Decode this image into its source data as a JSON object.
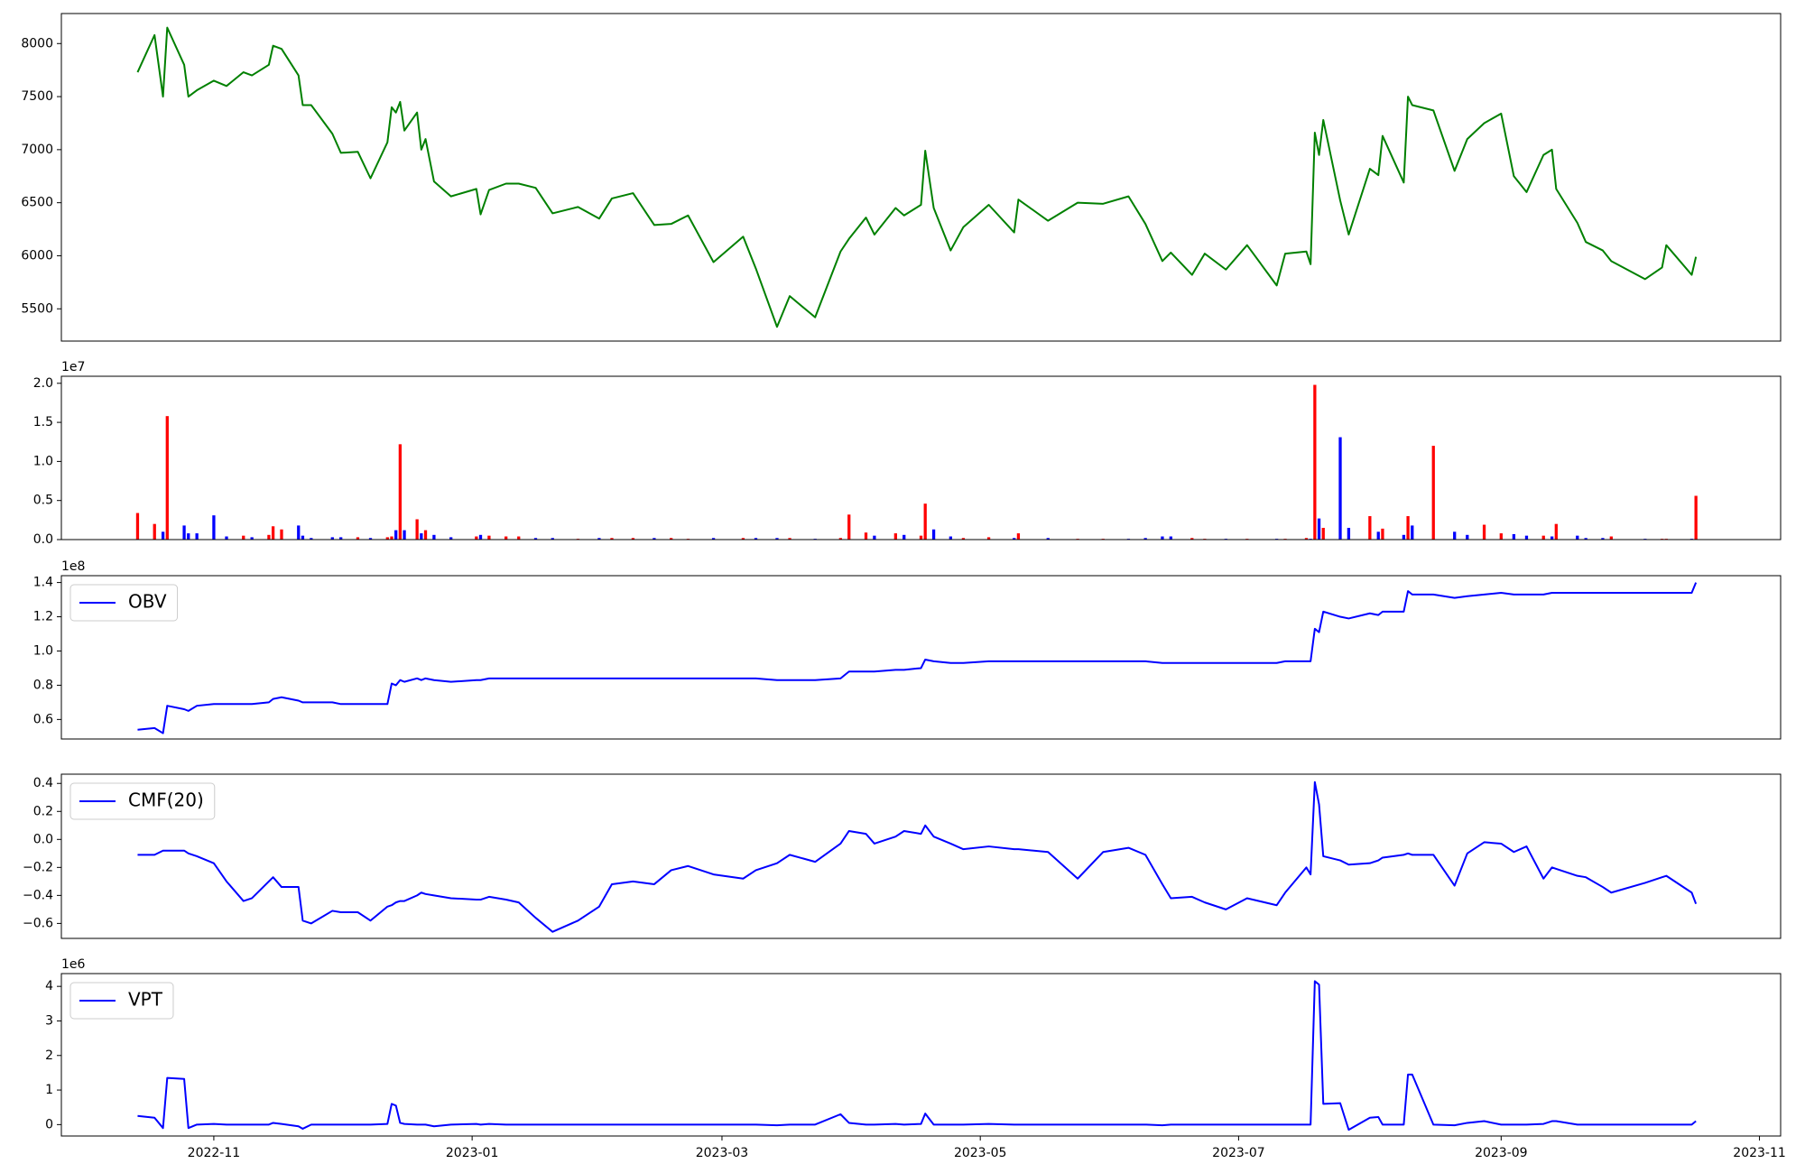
{
  "chart_data": [
    {
      "type": "line",
      "color": "green",
      "xlim": [
        "2022-09-26",
        "2023-11-06"
      ],
      "x": [
        "2022-10-14",
        "2022-10-18",
        "2022-10-20",
        "2022-10-21",
        "2022-10-25",
        "2022-10-26",
        "2022-10-28",
        "2022-11-01",
        "2022-11-04",
        "2022-11-08",
        "2022-11-10",
        "2022-11-14",
        "2022-11-15",
        "2022-11-17",
        "2022-11-21",
        "2022-11-22",
        "2022-11-24",
        "2022-11-29",
        "2022-12-01",
        "2022-12-05",
        "2022-12-08",
        "2022-12-12",
        "2022-12-13",
        "2022-12-14",
        "2022-12-15",
        "2022-12-16",
        "2022-12-19",
        "2022-12-20",
        "2022-12-21",
        "2022-12-23",
        "2022-12-27",
        "2023-01-02",
        "2023-01-03",
        "2023-01-05",
        "2023-01-09",
        "2023-01-12",
        "2023-01-16",
        "2023-01-20",
        "2023-01-26",
        "2023-01-31",
        "2023-02-03",
        "2023-02-08",
        "2023-02-13",
        "2023-02-17",
        "2023-02-21",
        "2023-02-27",
        "2023-03-06",
        "2023-03-09",
        "2023-03-14",
        "2023-03-17",
        "2023-03-23",
        "2023-03-29",
        "2023-03-31",
        "2023-04-04",
        "2023-04-06",
        "2023-04-11",
        "2023-04-13",
        "2023-04-17",
        "2023-04-18",
        "2023-04-20",
        "2023-04-24",
        "2023-04-27",
        "2023-05-03",
        "2023-05-09",
        "2023-05-10",
        "2023-05-17",
        "2023-05-24",
        "2023-05-30",
        "2023-06-05",
        "2023-06-09",
        "2023-06-13",
        "2023-06-15",
        "2023-06-20",
        "2023-06-23",
        "2023-06-28",
        "2023-07-03",
        "2023-07-10",
        "2023-07-12",
        "2023-07-17",
        "2023-07-18",
        "2023-07-19",
        "2023-07-20",
        "2023-07-21",
        "2023-07-25",
        "2023-07-27",
        "2023-08-01",
        "2023-08-03",
        "2023-08-04",
        "2023-08-09",
        "2023-08-10",
        "2023-08-11",
        "2023-08-16",
        "2023-08-21",
        "2023-08-24",
        "2023-08-28",
        "2023-09-01",
        "2023-09-04",
        "2023-09-07",
        "2023-09-11",
        "2023-09-13",
        "2023-09-14",
        "2023-09-19",
        "2023-09-21",
        "2023-09-25",
        "2023-09-27",
        "2023-10-05",
        "2023-10-09",
        "2023-10-10",
        "2023-10-16",
        "2023-10-17"
      ],
      "values": [
        7730,
        8080,
        7500,
        8150,
        7800,
        7500,
        7560,
        7650,
        7600,
        7730,
        7700,
        7800,
        7980,
        7950,
        7700,
        7420,
        7420,
        7150,
        6970,
        6980,
        6730,
        7070,
        7400,
        7350,
        7450,
        7180,
        7350,
        7000,
        7100,
        6700,
        6560,
        6630,
        6390,
        6620,
        6680,
        6680,
        6640,
        6400,
        6460,
        6350,
        6540,
        6590,
        6290,
        6300,
        6380,
        5940,
        6180,
        5880,
        5330,
        5620,
        5420,
        6040,
        6160,
        6360,
        6200,
        6450,
        6380,
        6480,
        6990,
        6450,
        6050,
        6270,
        6480,
        6220,
        6530,
        6330,
        6500,
        6490,
        6560,
        6300,
        5950,
        6030,
        5820,
        6020,
        5870,
        6100,
        5720,
        6020,
        6040,
        5920,
        7160,
        6950,
        7280,
        6520,
        6200,
        6820,
        6760,
        7130,
        6690,
        7500,
        7420,
        7370,
        6800,
        7100,
        7250,
        7340,
        6750,
        6600,
        6950,
        7000,
        6630,
        6310,
        6130,
        6050,
        5950,
        5780,
        5890,
        6100,
        5820,
        5990
      ],
      "ylim": [
        5196,
        8283
      ],
      "yticks": [
        5500,
        6000,
        6500,
        7000,
        7500,
        8000
      ]
    },
    {
      "type": "bar",
      "sharex": true,
      "offset_label": "1e7",
      "values": [
        0.34,
        0.2,
        0.1,
        1.58,
        0.18,
        0.08,
        0.08,
        0.31,
        0.04,
        0.05,
        0.03,
        0.06,
        0.17,
        0.13,
        0.18,
        0.05,
        0.02,
        0.03,
        0.03,
        0.03,
        0.02,
        0.03,
        0.04,
        0.12,
        1.22,
        0.12,
        0.26,
        0.08,
        0.12,
        0.06,
        0.03,
        0.04,
        0.06,
        0.05,
        0.04,
        0.04,
        0.02,
        0.02,
        0.01,
        0.02,
        0.02,
        0.02,
        0.02,
        0.02,
        0.01,
        0.02,
        0.02,
        0.02,
        0.02,
        0.02,
        0.01,
        0.02,
        0.32,
        0.09,
        0.05,
        0.08,
        0.06,
        0.05,
        0.46,
        0.13,
        0.04,
        0.02,
        0.03,
        0.02,
        0.08,
        0.02,
        0.01,
        0.01,
        0.01,
        0.02,
        0.04,
        0.04,
        0.02,
        0.01,
        0.01,
        0.01,
        0.01,
        0.01,
        0.02,
        0.01,
        1.98,
        0.27,
        0.15,
        1.31,
        0.15,
        0.3,
        0.1,
        0.14,
        0.06,
        0.3,
        0.18,
        1.2,
        0.1,
        0.06,
        0.19,
        0.08,
        0.07,
        0.05,
        0.05,
        0.04,
        0.2,
        0.05,
        0.02,
        0.02,
        0.04,
        0.01,
        0.01,
        0.01,
        0.01,
        0.56
      ],
      "colors": [
        "red",
        "red",
        "blue",
        "red",
        "blue",
        "blue",
        "blue",
        "blue",
        "blue",
        "red",
        "blue",
        "red",
        "red",
        "red",
        "blue",
        "blue",
        "blue",
        "blue",
        "blue",
        "red",
        "blue",
        "red",
        "red",
        "blue",
        "red",
        "blue",
        "red",
        "blue",
        "red",
        "blue",
        "blue",
        "red",
        "blue",
        "red",
        "red",
        "red",
        "blue",
        "blue",
        "red",
        "blue",
        "red",
        "red",
        "blue",
        "red",
        "red",
        "blue",
        "red",
        "blue",
        "blue",
        "red",
        "blue",
        "red",
        "red",
        "red",
        "blue",
        "red",
        "blue",
        "red",
        "red",
        "blue",
        "blue",
        "red",
        "red",
        "blue",
        "red",
        "blue",
        "red",
        "red",
        "blue",
        "blue",
        "blue",
        "blue",
        "red",
        "red",
        "blue",
        "red",
        "blue",
        "red",
        "red",
        "blue",
        "red",
        "blue",
        "red",
        "blue",
        "blue",
        "red",
        "blue",
        "red",
        "blue",
        "red",
        "blue",
        "red",
        "blue",
        "blue",
        "red",
        "red",
        "blue",
        "blue",
        "red",
        "blue",
        "red",
        "blue",
        "blue",
        "blue",
        "red",
        "blue",
        "red",
        "red",
        "blue",
        "red"
      ],
      "ylim": [
        0,
        2.09
      ],
      "yticks": [
        {
          "value": 0,
          "label": "0.0"
        },
        0.5,
        {
          "value": 1,
          "label": "1.0"
        },
        1.5,
        {
          "value": 2,
          "label": "2.0"
        }
      ]
    },
    {
      "type": "line",
      "sharex": true,
      "offset_label": "1e8",
      "legend": "upper left",
      "series": [
        {
          "name": "OBV",
          "color": "blue",
          "values": [
            0.54,
            0.55,
            0.52,
            0.68,
            0.66,
            0.65,
            0.68,
            0.69,
            0.69,
            0.69,
            0.69,
            0.7,
            0.72,
            0.73,
            0.71,
            0.7,
            0.7,
            0.7,
            0.69,
            0.69,
            0.69,
            0.69,
            0.81,
            0.8,
            0.83,
            0.82,
            0.84,
            0.83,
            0.84,
            0.83,
            0.82,
            0.83,
            0.83,
            0.84,
            0.84,
            0.84,
            0.84,
            0.84,
            0.84,
            0.84,
            0.84,
            0.84,
            0.84,
            0.84,
            0.84,
            0.84,
            0.84,
            0.84,
            0.83,
            0.83,
            0.83,
            0.84,
            0.88,
            0.88,
            0.88,
            0.89,
            0.89,
            0.9,
            0.95,
            0.94,
            0.93,
            0.93,
            0.94,
            0.94,
            0.94,
            0.94,
            0.94,
            0.94,
            0.94,
            0.94,
            0.93,
            0.93,
            0.93,
            0.93,
            0.93,
            0.93,
            0.93,
            0.94,
            0.94,
            0.94,
            1.13,
            1.11,
            1.23,
            1.2,
            1.19,
            1.22,
            1.21,
            1.23,
            1.23,
            1.35,
            1.33,
            1.33,
            1.31,
            1.32,
            1.33,
            1.34,
            1.33,
            1.33,
            1.33,
            1.34,
            1.34,
            1.34,
            1.34,
            1.34,
            1.34,
            1.34,
            1.34,
            1.34,
            1.34,
            1.4
          ]
        }
      ],
      "ylim": [
        0.486,
        1.44
      ],
      "yticks": [
        0.6,
        0.8,
        {
          "value": 1,
          "label": "1.0"
        },
        1.2,
        1.4
      ]
    },
    {
      "type": "line",
      "sharex": true,
      "legend": "upper left",
      "series": [
        {
          "name": "CMF(20)",
          "color": "blue",
          "values": [
            -0.11,
            -0.11,
            -0.08,
            -0.08,
            -0.08,
            -0.1,
            -0.12,
            -0.17,
            -0.3,
            -0.44,
            -0.42,
            -0.3,
            -0.27,
            -0.34,
            -0.34,
            -0.58,
            -0.6,
            -0.51,
            -0.52,
            -0.52,
            -0.58,
            -0.48,
            -0.47,
            -0.45,
            -0.44,
            -0.44,
            -0.4,
            -0.38,
            -0.39,
            -0.4,
            -0.42,
            -0.43,
            -0.43,
            -0.41,
            -0.43,
            -0.45,
            -0.56,
            -0.66,
            -0.58,
            -0.48,
            -0.32,
            -0.3,
            -0.32,
            -0.22,
            -0.19,
            -0.25,
            -0.28,
            -0.22,
            -0.17,
            -0.11,
            -0.16,
            -0.03,
            0.06,
            0.04,
            -0.03,
            0.02,
            0.06,
            0.04,
            0.1,
            0.02,
            -0.03,
            -0.07,
            -0.05,
            -0.07,
            -0.07,
            -0.09,
            -0.28,
            -0.09,
            -0.06,
            -0.11,
            -0.32,
            -0.42,
            -0.41,
            -0.45,
            -0.5,
            -0.42,
            -0.47,
            -0.38,
            -0.2,
            -0.25,
            0.41,
            0.25,
            -0.12,
            -0.15,
            -0.18,
            -0.17,
            -0.15,
            -0.13,
            -0.11,
            -0.1,
            -0.11,
            -0.11,
            -0.33,
            -0.1,
            -0.02,
            -0.03,
            -0.09,
            -0.05,
            -0.28,
            -0.2,
            -0.21,
            -0.26,
            -0.27,
            -0.34,
            -0.38,
            -0.31,
            -0.27,
            -0.26,
            -0.38,
            -0.46
          ]
        }
      ],
      "ylim": [
        -0.707,
        0.466
      ],
      "yticks": [
        {
          "value": -0.6,
          "label": "−0.6"
        },
        {
          "value": -0.4,
          "label": "−0.4"
        },
        {
          "value": -0.2,
          "label": "−0.2"
        },
        {
          "value": 0,
          "label": "0.0"
        },
        0.2,
        0.4
      ]
    },
    {
      "type": "line",
      "sharex": true,
      "offset_label": "1e6",
      "legend": "upper left",
      "series": [
        {
          "name": "VPT",
          "color": "blue",
          "values": [
            0.25,
            0.2,
            -0.1,
            1.35,
            1.32,
            -0.1,
            0,
            0.02,
            0,
            0,
            0,
            0,
            0.05,
            0.02,
            -0.05,
            -0.12,
            0,
            0,
            0,
            0,
            0,
            0.02,
            0.6,
            0.55,
            0.05,
            0.02,
            0,
            0,
            0,
            -0.05,
            0,
            0.02,
            0,
            0.02,
            0,
            0,
            0,
            0,
            0,
            0,
            0,
            0,
            0,
            0,
            0,
            0,
            0,
            0,
            -0.02,
            0,
            0,
            0.3,
            0.05,
            0,
            0,
            0.02,
            0,
            0.02,
            0.32,
            0,
            0,
            0,
            0.02,
            0,
            0,
            0,
            0,
            0,
            0,
            0,
            -0.02,
            0,
            0,
            0,
            0,
            0,
            0,
            0,
            0,
            0,
            4.15,
            4.05,
            0.6,
            0.62,
            -0.15,
            0.2,
            0.22,
            0,
            0,
            1.45,
            1.45,
            0,
            -0.02,
            0.05,
            0.1,
            0,
            0,
            0,
            0.02,
            0.1,
            0.1,
            0,
            0,
            0,
            0,
            0,
            0,
            0,
            0,
            0.1
          ]
        }
      ],
      "ylim": [
        -0.33,
        4.37
      ],
      "yticks": [
        0,
        1,
        2,
        3,
        4
      ],
      "xticks": [
        {
          "value": "2022-11-01",
          "label": "2022-11"
        },
        {
          "value": "2023-01-01",
          "label": "2023-01"
        },
        {
          "value": "2023-03-01",
          "label": "2023-03"
        },
        {
          "value": "2023-05-01",
          "label": "2023-05"
        },
        {
          "value": "2023-07-01",
          "label": "2023-07"
        },
        {
          "value": "2023-09-01",
          "label": "2023-09"
        },
        {
          "value": "2023-11-01",
          "label": "2023-11"
        }
      ]
    }
  ]
}
